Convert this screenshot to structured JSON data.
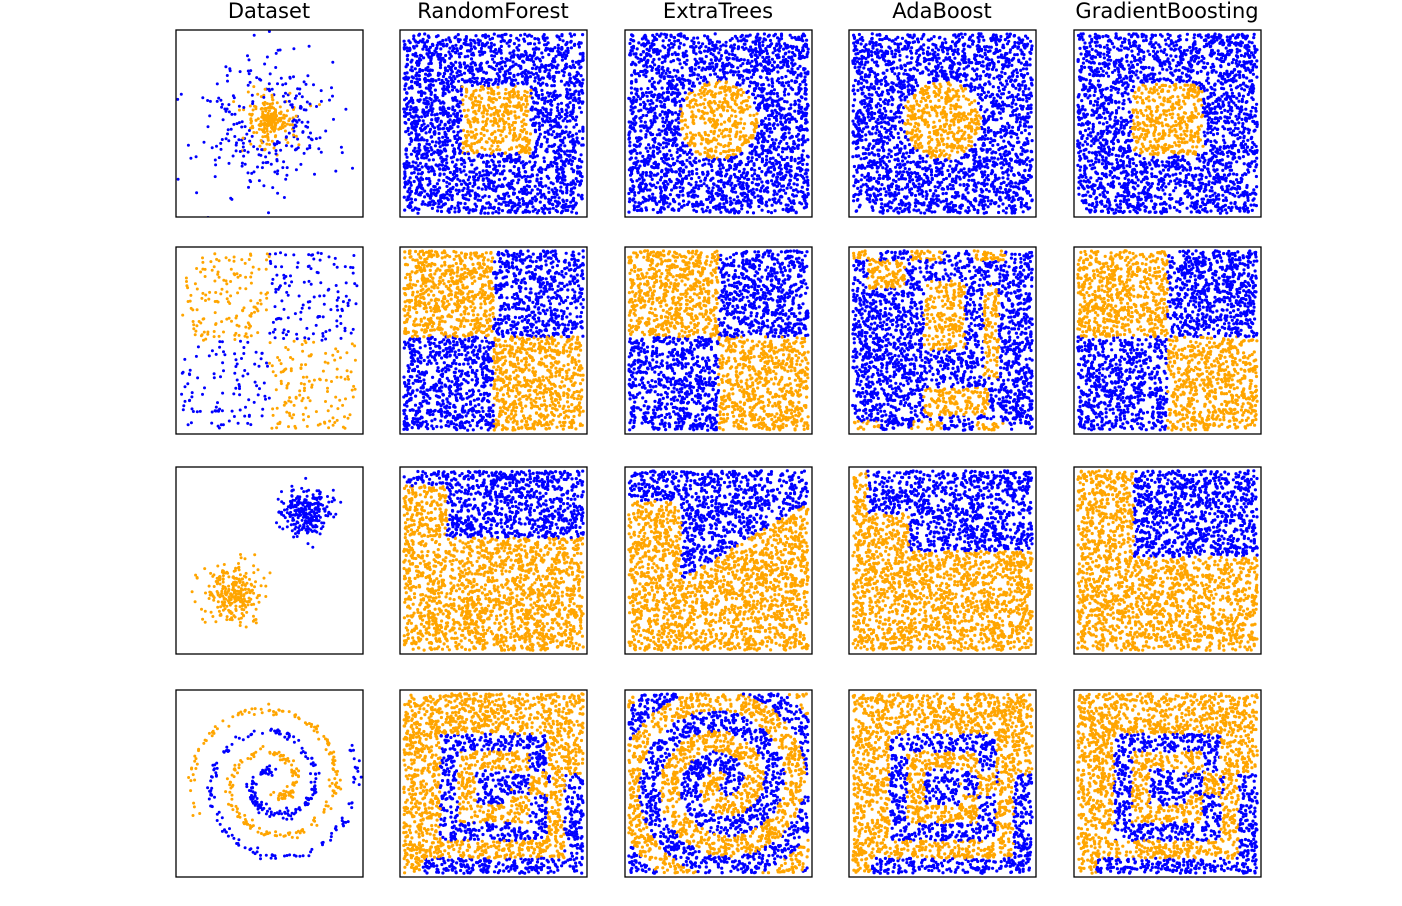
{
  "figure": {
    "column_titles": [
      "Dataset",
      "RandomForest",
      "ExtraTrees",
      "AdaBoost",
      "GradientBoosting"
    ],
    "datasets": [
      "circles",
      "xor",
      "blobs",
      "spiral"
    ]
  },
  "colors": {
    "class_0": "#0000ff",
    "class_1": "#ffa500",
    "frame": "#000000",
    "background": "#ffffff"
  },
  "chart_data": {
    "type": "scatter",
    "layout": "grid 4 rows x 5 columns",
    "axes": "hidden (no ticks, no tick labels)",
    "x_range": [
      0,
      1
    ],
    "y_range": [
      0,
      1
    ],
    "legend": "none",
    "grid": false,
    "series": [
      {
        "class": 0,
        "color": "#0000ff"
      },
      {
        "class": 1,
        "color": "#ffa500"
      }
    ],
    "rows": [
      {
        "dataset": "circles",
        "dataset_panel": "ring of class 0 around a centered disc of class 1",
        "regions": {
          "RandomForest": "square-ish center region class 1 (x 0.32-0.70, y 0.34-0.70), rest class 0",
          "ExtraTrees": "roughly circular center region class 1, rest class 0",
          "AdaBoost": "circular center region class 1 (radius ~0.2), rest class 0",
          "GradientBoosting": "rounded-square center region class 1, rest class 0"
        }
      },
      {
        "dataset": "xor",
        "dataset_panel": "top-left and bottom-right class 1, top-right and bottom-left class 0",
        "regions": {
          "RandomForest": "quadrants split at x 0.5, y 0.52",
          "ExtraTrees": "quadrants split at x 0.5, y 0.52",
          "AdaBoost": "fragmented stripes and rectangles of both classes",
          "GradientBoosting": "quadrants split at x 0.5, y 0.52"
        }
      },
      {
        "dataset": "blobs",
        "dataset_panel": "class 0 blob upper-right (0.7, 0.78), class 1 blob lower-left (0.3, 0.35)",
        "regions": {
          "RandomForest": "upper-right region class 0 above y ~0.62, rest class 1",
          "ExtraTrees": "upper region class 0 with diagonal lower boundary, rest class 1",
          "AdaBoost": "upper-right region class 0 with step boundary, rest class 1",
          "GradientBoosting": "upper-right rectangle class 0 (x > 0.32, y > 0.52), rest class 1"
        }
      },
      {
        "dataset": "spiral",
        "dataset_panel": "two interleaved spiral arms, class 1 and class 0",
        "regions": {
          "RandomForest": "nested square-spiral bands alternating class 1 and class 0",
          "ExtraTrees": "smooth spiral bands alternating class 1 and class 0",
          "AdaBoost": "nested square-spiral bands alternating class 1 and class 0",
          "GradientBoosting": "nested square-spiral bands alternating class 1 and class 0"
        }
      }
    ]
  }
}
